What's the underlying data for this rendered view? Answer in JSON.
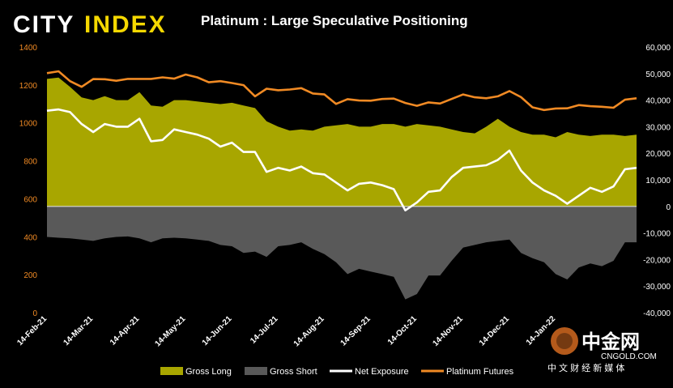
{
  "brand": {
    "city": "CITY",
    "index": "INDEX",
    "city_color": "#ffffff",
    "index_color": "#f5d800"
  },
  "title": "Platinum : Large Speculative Positioning",
  "watermark": {
    "logo_text": "中金网",
    "url_text": "CNGOLD.COM",
    "subtitle": "中 文 财 经 新 媒 体"
  },
  "chart_data": {
    "type": "area",
    "x": [
      "14-Feb-21",
      "21-Feb-21",
      "28-Feb-21",
      "07-Mar-21",
      "14-Mar-21",
      "21-Mar-21",
      "28-Mar-21",
      "04-Apr-21",
      "11-Apr-21",
      "18-Apr-21",
      "25-Apr-21",
      "02-May-21",
      "09-May-21",
      "16-May-21",
      "23-May-21",
      "30-May-21",
      "06-Jun-21",
      "13-Jun-21",
      "20-Jun-21",
      "27-Jun-21",
      "04-Jul-21",
      "11-Jul-21",
      "18-Jul-21",
      "25-Jul-21",
      "01-Aug-21",
      "08-Aug-21",
      "15-Aug-21",
      "22-Aug-21",
      "29-Aug-21",
      "05-Sep-21",
      "12-Sep-21",
      "19-Sep-21",
      "26-Sep-21",
      "03-Oct-21",
      "10-Oct-21",
      "17-Oct-21",
      "24-Oct-21",
      "31-Oct-21",
      "07-Nov-21",
      "14-Nov-21",
      "21-Nov-21",
      "28-Nov-21",
      "05-Dec-21",
      "12-Dec-21",
      "19-Dec-21",
      "26-Dec-21",
      "02-Jan-22",
      "09-Jan-22",
      "16-Jan-22",
      "23-Jan-22",
      "30-Jan-22",
      "06-Feb-22"
    ],
    "x_ticks": [
      "14-Feb-21",
      "14-Mar-21",
      "14-Apr-21",
      "14-May-21",
      "14-Jun-21",
      "14-Jul-21",
      "14-Aug-21",
      "14-Sep-21",
      "14-Oct-21",
      "14-Nov-21",
      "14-Dec-21",
      "14-Jan-22"
    ],
    "x_tick_index": [
      0,
      4,
      8,
      12,
      16,
      20,
      24,
      28,
      32,
      36,
      40,
      44
    ],
    "left_axis": {
      "ylim": [
        0,
        1400
      ],
      "ticks": [
        0,
        200,
        400,
        600,
        800,
        1000,
        1200,
        1400
      ],
      "color": "#f08a24"
    },
    "right_axis": {
      "ylim": [
        -40000,
        60000
      ],
      "ticks": [
        "-40,000",
        "-30,000",
        "-20,000",
        "-10,000",
        "0",
        "10,000",
        "20,000",
        "30,000",
        "40,000",
        "50,000",
        "60,000"
      ],
      "tick_values": [
        -40000,
        -30000,
        -20000,
        -10000,
        0,
        10000,
        20000,
        30000,
        40000,
        50000,
        60000
      ]
    },
    "series": [
      {
        "name": "Gross Long",
        "axis": "right",
        "color": "#a8a600",
        "values": [
          48000,
          48500,
          45000,
          41000,
          40000,
          41500,
          40000,
          40000,
          43000,
          38000,
          37500,
          40000,
          40000,
          39500,
          39000,
          38500,
          39000,
          38000,
          37000,
          32000,
          30000,
          28500,
          29000,
          28500,
          30000,
          30500,
          31000,
          30000,
          30000,
          31000,
          31000,
          30000,
          31000,
          30500,
          30000,
          29000,
          28000,
          27500,
          30000,
          33000,
          30000,
          28000,
          27000,
          27000,
          26000,
          28000,
          27000,
          26500,
          27000,
          27000,
          26500,
          27000
        ]
      },
      {
        "name": "Gross Short",
        "axis": "right",
        "color": "#595959",
        "values": [
          -11500,
          -11800,
          -12000,
          -12500,
          -13000,
          -12000,
          -11500,
          -11300,
          -12000,
          -13500,
          -12000,
          -11800,
          -12000,
          -12500,
          -13000,
          -14500,
          -15000,
          -17500,
          -17000,
          -19000,
          -15000,
          -14500,
          -13500,
          -16000,
          -18000,
          -21000,
          -25500,
          -23500,
          -24500,
          -25500,
          -26500,
          -35000,
          -33000,
          -26000,
          -26000,
          -20500,
          -15500,
          -14500,
          -13500,
          -13000,
          -12500,
          -17500,
          -19500,
          -21000,
          -25500,
          -27500,
          -23000,
          -21500,
          -22500,
          -20500,
          -13500,
          -13500
        ]
      },
      {
        "name": "Net Exposure",
        "axis": "right",
        "color": "#ffffff",
        "values": [
          36000,
          36500,
          35500,
          31000,
          28000,
          31000,
          30000,
          30000,
          33000,
          24500,
          25000,
          29000,
          28000,
          27000,
          25500,
          22500,
          24000,
          20500,
          20500,
          13000,
          14500,
          13500,
          15000,
          12500,
          12000,
          9000,
          6000,
          8500,
          9000,
          8000,
          6500,
          -1500,
          1500,
          5500,
          6000,
          11000,
          14500,
          15000,
          15500,
          17500,
          21000,
          13500,
          9000,
          6000,
          4000,
          1000,
          4000,
          7000,
          5500,
          7500,
          14000,
          14500
        ]
      },
      {
        "name": "Platinum Futures",
        "axis": "left",
        "color": "#f08a24",
        "values": [
          1262,
          1272,
          1220,
          1190,
          1231,
          1230,
          1222,
          1232,
          1232,
          1232,
          1240,
          1233,
          1255,
          1240,
          1214,
          1220,
          1210,
          1199,
          1140,
          1180,
          1172,
          1176,
          1183,
          1155,
          1150,
          1100,
          1125,
          1118,
          1117,
          1126,
          1128,
          1105,
          1090,
          1108,
          1102,
          1126,
          1150,
          1135,
          1130,
          1140,
          1168,
          1136,
          1082,
          1068,
          1076,
          1077,
          1094,
          1088,
          1085,
          1080,
          1122,
          1130
        ]
      }
    ],
    "legend": {
      "position": "bottom",
      "items": [
        "Gross Long",
        "Gross Short",
        "Net Exposure",
        "Platinum Futures"
      ]
    },
    "grid": false
  }
}
